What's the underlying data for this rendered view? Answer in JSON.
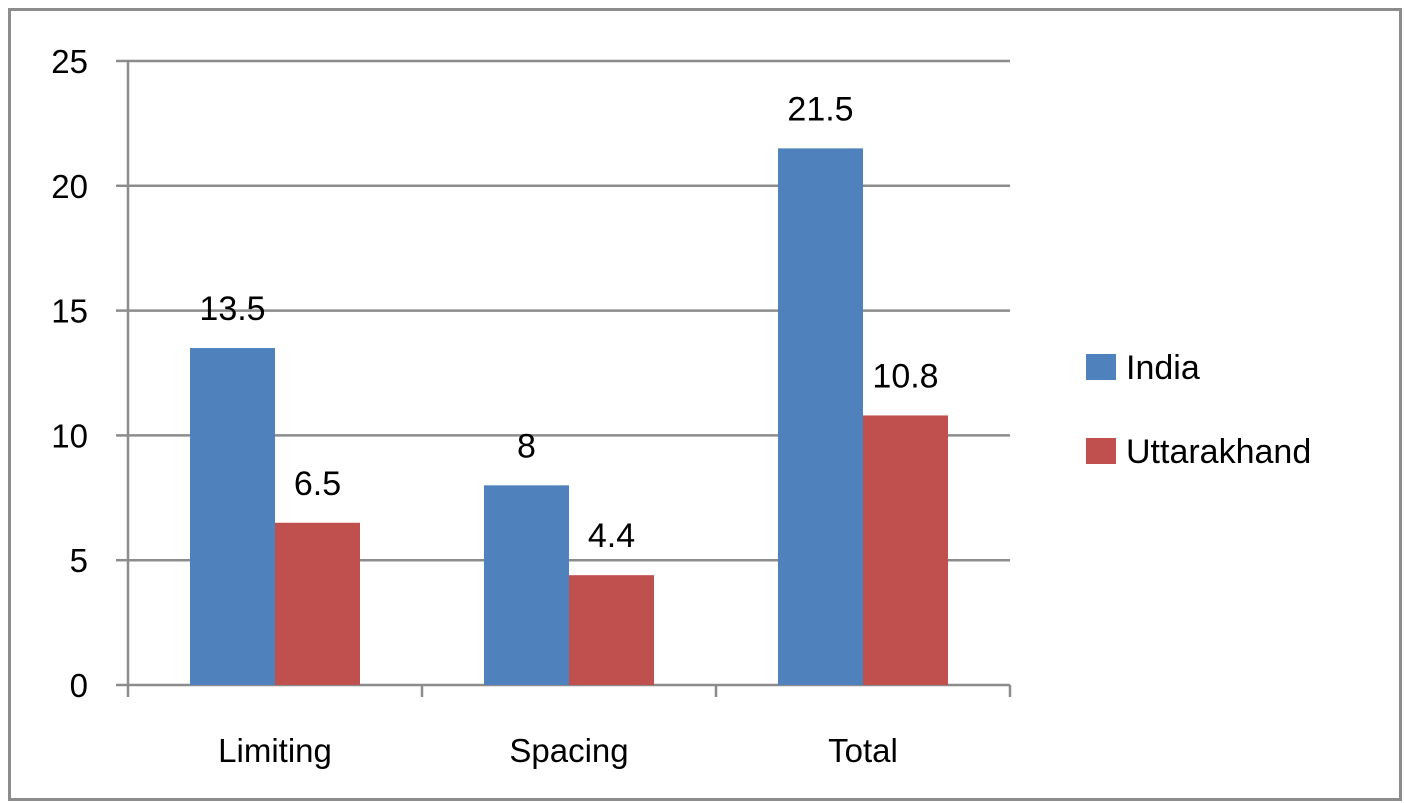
{
  "chart_data": {
    "type": "bar",
    "categories": [
      "Limiting",
      "Spacing",
      "Total"
    ],
    "series": [
      {
        "name": "India",
        "values": [
          13.5,
          8,
          21.5
        ],
        "labels": [
          "13.5",
          "8",
          "21.5"
        ],
        "color": "#4f81bd"
      },
      {
        "name": "Uttarakhand",
        "values": [
          6.5,
          4.4,
          10.8
        ],
        "labels": [
          "6.5",
          "4.4",
          "10.8"
        ],
        "color": "#c0504d"
      }
    ],
    "ylim": [
      0,
      25
    ],
    "yticks": [
      0,
      5,
      10,
      15,
      20,
      25
    ],
    "grid": true,
    "legend": "right",
    "title": "",
    "xlabel": "",
    "ylabel": ""
  }
}
